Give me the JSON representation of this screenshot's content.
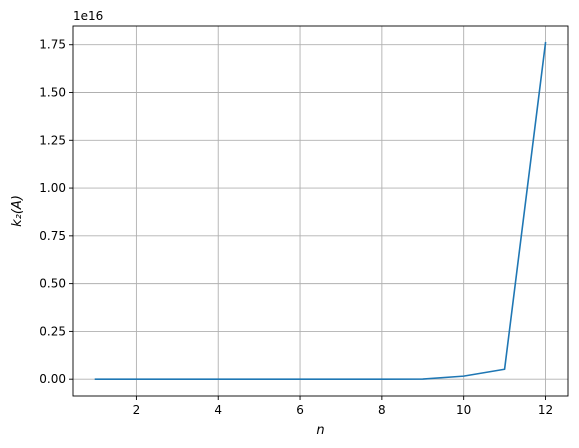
{
  "chart_data": {
    "type": "line",
    "title": "",
    "xlabel": "n",
    "ylabel": "k₂(A)",
    "y_offset_label": "1e16",
    "xlim": [
      0.45,
      12.55
    ],
    "ylim": [
      -0.088,
      1.848
    ],
    "x_ticks": [
      2,
      4,
      6,
      8,
      10,
      12
    ],
    "x_tick_labels": [
      "2",
      "4",
      "6",
      "8",
      "10",
      "12"
    ],
    "y_ticks": [
      0.0,
      0.25,
      0.5,
      0.75,
      1.0,
      1.25,
      1.5,
      1.75
    ],
    "y_tick_labels": [
      "0.00",
      "0.25",
      "0.50",
      "0.75",
      "1.00",
      "1.25",
      "1.50",
      "1.75"
    ],
    "grid": true,
    "series": [
      {
        "color": "#1f77b4",
        "x": [
          1,
          2,
          3,
          4,
          5,
          6,
          7,
          8,
          9,
          10,
          11,
          12
        ],
        "y": [
          0,
          0,
          0,
          0,
          0,
          0,
          0,
          0,
          0.0005,
          0.016,
          0.052,
          1.76
        ]
      }
    ]
  }
}
